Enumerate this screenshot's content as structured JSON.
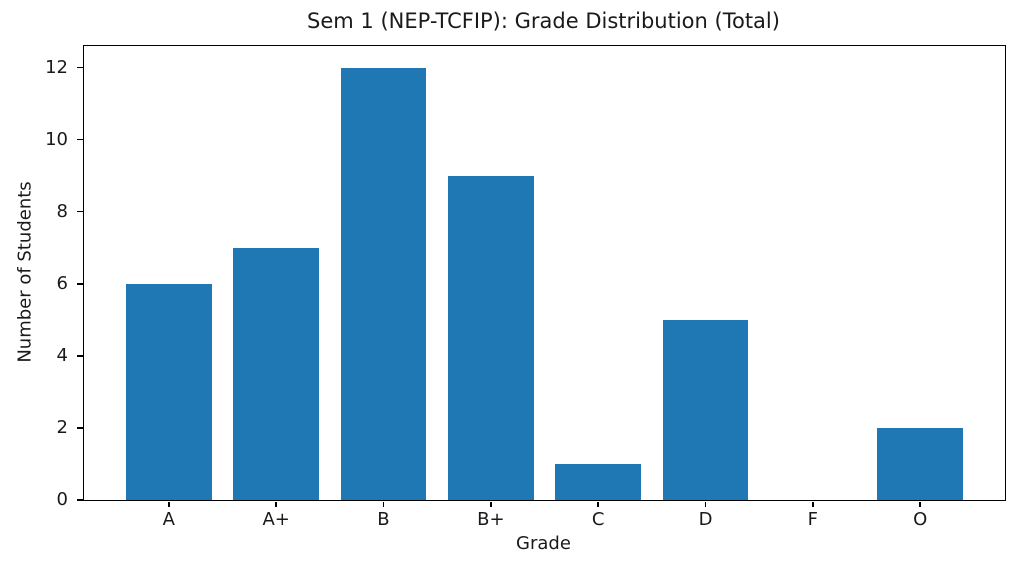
{
  "chart_data": {
    "type": "bar",
    "title": "Sem 1 (NEP-TCFIP): Grade Distribution (Total)",
    "xlabel": "Grade",
    "ylabel": "Number of Students",
    "categories": [
      "A",
      "A+",
      "B",
      "B+",
      "C",
      "D",
      "F",
      "O"
    ],
    "values": [
      6,
      7,
      12,
      9,
      1,
      5,
      0,
      2
    ],
    "yticks": [
      0,
      2,
      4,
      6,
      8,
      10,
      12
    ],
    "ylim": [
      0,
      12.6
    ],
    "bar_color": "#1f77b4",
    "bar_width_fraction": 0.8,
    "grid": false,
    "legend": null,
    "background_color": "#ffffff",
    "spine_color": "#000000"
  }
}
